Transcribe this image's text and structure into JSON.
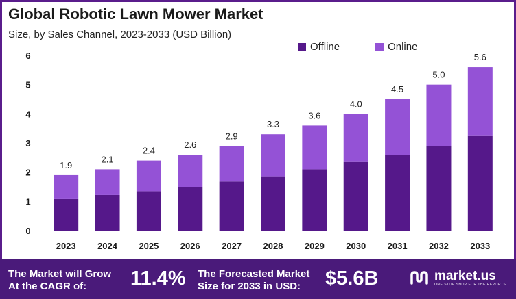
{
  "header": {
    "title": "Global Robotic Lawn Mower Market",
    "subtitle": "Size, by Sales Channel, 2023-2033 (USD Billion)"
  },
  "colors": {
    "offline": "#55188a",
    "online": "#9452d6",
    "banner": "#4a1a7a",
    "frame": "#5a1d8c"
  },
  "chart_data": {
    "type": "bar",
    "stacked": true,
    "categories": [
      "2023",
      "2024",
      "2025",
      "2026",
      "2027",
      "2028",
      "2029",
      "2030",
      "2031",
      "2032",
      "2033"
    ],
    "series": [
      {
        "name": "Offline",
        "values": [
          1.08,
          1.22,
          1.35,
          1.5,
          1.68,
          1.86,
          2.1,
          2.35,
          2.6,
          2.9,
          3.24
        ]
      },
      {
        "name": "Online",
        "values": [
          0.82,
          0.88,
          1.05,
          1.1,
          1.22,
          1.44,
          1.5,
          1.65,
          1.9,
          2.1,
          2.36
        ]
      }
    ],
    "totals": [
      "1.9",
      "2.1",
      "2.4",
      "2.6",
      "2.9",
      "3.3",
      "3.6",
      "4.0",
      "4.5",
      "5.0",
      "5.6"
    ],
    "yticks": [
      "0",
      "1",
      "2",
      "3",
      "4",
      "5",
      "6"
    ],
    "ylim": [
      0,
      6
    ],
    "legend_position": "top-right",
    "grid": false
  },
  "banner": {
    "cagr_label_line1": "The Market will Grow",
    "cagr_label_line2": "At the CAGR of:",
    "cagr_value": "11.4%",
    "forecast_label_line1": "The Forecasted Market",
    "forecast_label_line2": "Size for 2033 in USD:",
    "forecast_value": "$5.6B",
    "brand_name": "market.us",
    "brand_tagline": "ONE STOP SHOP FOR THE REPORTS"
  }
}
